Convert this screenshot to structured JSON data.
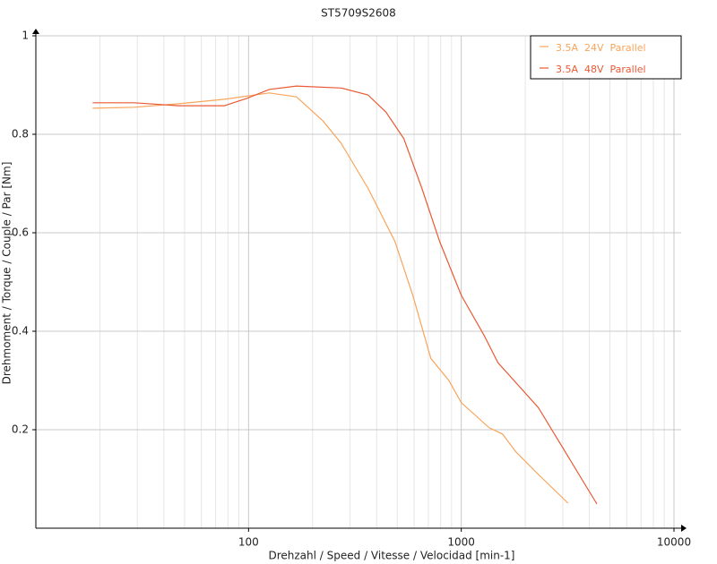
{
  "chart_data": {
    "type": "line",
    "title": "ST5709S2608",
    "x_label": "Drehzahl / Speed / Vitesse / Velocidad [min-1]",
    "y_label": "Drehmoment / Torque / Couple / Par [Nm]",
    "x_scale": "log",
    "xlim": [
      10,
      10000
    ],
    "xticks": [
      100,
      1000,
      10000
    ],
    "xminorticks": [
      20,
      30,
      40,
      50,
      60,
      70,
      80,
      90,
      200,
      300,
      400,
      500,
      600,
      700,
      800,
      900,
      2000,
      3000,
      4000,
      5000,
      6000,
      7000,
      8000,
      9000
    ],
    "ylim": [
      0,
      1
    ],
    "yticks": [
      0.2,
      0.4,
      0.6,
      0.8,
      1
    ],
    "grid": true,
    "legend": "upper right",
    "series": [
      {
        "name": "3.5A  24V  Parallel",
        "color": "#f7a55c",
        "x": [
          18.5,
          29,
          47,
          77,
          125,
          168,
          224,
          272,
          364,
          488,
          592,
          719,
          874,
          1000,
          1352,
          1563,
          1807,
          2305,
          3177
        ],
        "values": [
          0.853,
          0.855,
          0.862,
          0.871,
          0.884,
          0.876,
          0.827,
          0.782,
          0.691,
          0.582,
          0.473,
          0.345,
          0.3,
          0.255,
          0.204,
          0.191,
          0.155,
          0.109,
          0.051
        ]
      },
      {
        "name": "3.5A  48V  Parallel",
        "color": "#e85a35",
        "x": [
          18.5,
          29,
          47,
          77,
          98,
          125,
          168,
          272,
          364,
          443,
          537,
          652,
          792,
          1000,
          1282,
          1488,
          2305,
          4341
        ],
        "values": [
          0.864,
          0.864,
          0.858,
          0.858,
          0.873,
          0.891,
          0.898,
          0.894,
          0.88,
          0.845,
          0.791,
          0.691,
          0.582,
          0.473,
          0.391,
          0.336,
          0.245,
          0.049
        ]
      }
    ]
  }
}
